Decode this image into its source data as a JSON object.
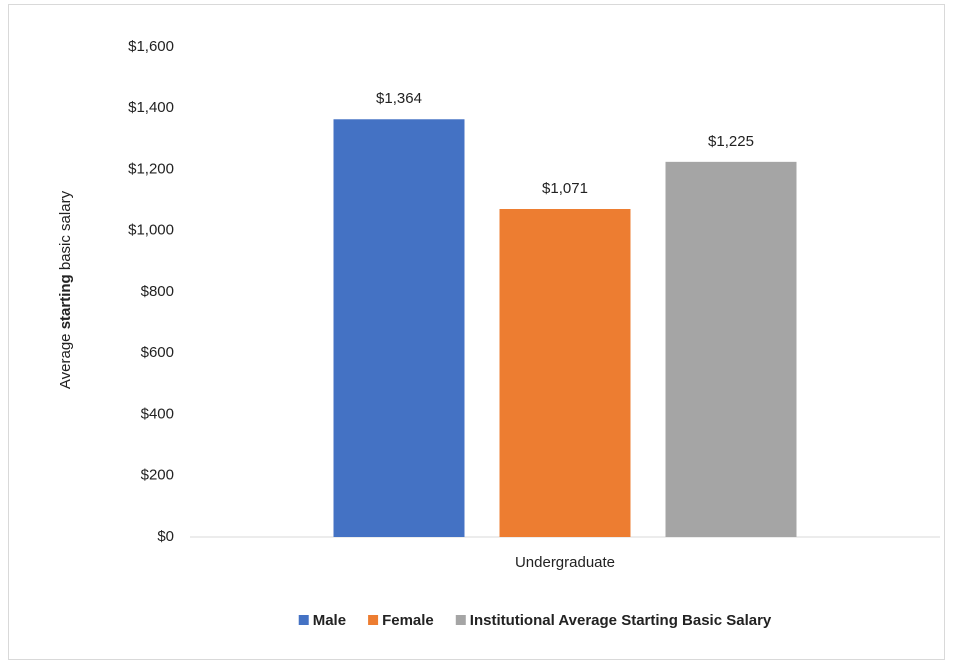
{
  "chart_data": {
    "type": "bar",
    "ylabel": [
      "Average",
      "starting",
      "basic salary"
    ],
    "categories": [
      "Undergraduate"
    ],
    "series": [
      {
        "name": "Male",
        "color": "#4472c4",
        "values": [
          1364
        ],
        "value_labels": [
          "$1,364"
        ]
      },
      {
        "name": "Female",
        "color": "#ed7d31",
        "values": [
          1071
        ],
        "value_labels": [
          "$1,071"
        ]
      },
      {
        "name": "Institutional Average Starting Basic Salary",
        "color": "#a5a5a5",
        "values": [
          1225
        ],
        "value_labels": [
          "$1,225"
        ]
      }
    ],
    "ylim": [
      0,
      1600
    ],
    "yticks": [
      {
        "value": 0,
        "label": "$0"
      },
      {
        "value": 200,
        "label": "$200"
      },
      {
        "value": 400,
        "label": "$400"
      },
      {
        "value": 600,
        "label": "$600"
      },
      {
        "value": 800,
        "label": "$800"
      },
      {
        "value": 1000,
        "label": "$1,000"
      },
      {
        "value": 1200,
        "label": "$1,200"
      },
      {
        "value": 1400,
        "label": "$1,400"
      },
      {
        "value": 1600,
        "label": "$1,600"
      }
    ],
    "grid": false,
    "legend": "bottom"
  }
}
